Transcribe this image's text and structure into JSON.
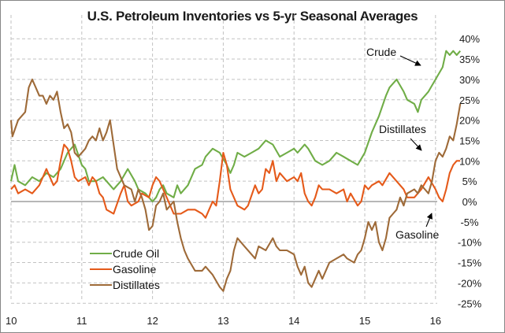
{
  "chart_data": {
    "type": "line",
    "title": "U.S. Petroleum Inventories vs 5-yr Seasonal Averages",
    "xlabel": "",
    "ylabel": "",
    "xlim": [
      10,
      16.2
    ],
    "ylim": [
      -25,
      40
    ],
    "x_ticks": [
      "10",
      "11",
      "12",
      "13",
      "14",
      "15",
      "16"
    ],
    "x_tick_values": [
      10,
      11,
      12,
      13,
      14,
      15,
      16
    ],
    "y_ticks": [
      "40%",
      "35%",
      "30%",
      "25%",
      "20%",
      "15%",
      "10%",
      "5%",
      "0%",
      "-5%",
      "-10%",
      "-15%",
      "-20%",
      "-25%"
    ],
    "y_tick_values": [
      40,
      35,
      30,
      25,
      20,
      15,
      10,
      5,
      0,
      -5,
      -10,
      -15,
      -20,
      -25
    ],
    "grid": true,
    "legend_position": "bottom-left",
    "series": [
      {
        "name": "Crude Oil",
        "color": "#70AD47",
        "points": [
          [
            10.0,
            5
          ],
          [
            10.05,
            9
          ],
          [
            10.1,
            5
          ],
          [
            10.2,
            4
          ],
          [
            10.3,
            6
          ],
          [
            10.4,
            5
          ],
          [
            10.5,
            7
          ],
          [
            10.6,
            6
          ],
          [
            10.7,
            8
          ],
          [
            10.8,
            12
          ],
          [
            10.9,
            14
          ],
          [
            11.0,
            9
          ],
          [
            11.05,
            8
          ],
          [
            11.1,
            5
          ],
          [
            11.2,
            5
          ],
          [
            11.3,
            6
          ],
          [
            11.4,
            4
          ],
          [
            11.45,
            3
          ],
          [
            11.55,
            5
          ],
          [
            11.65,
            8
          ],
          [
            11.75,
            5
          ],
          [
            11.8,
            3
          ],
          [
            11.9,
            2
          ],
          [
            12.0,
            0
          ],
          [
            12.05,
            1
          ],
          [
            12.1,
            3
          ],
          [
            12.15,
            4
          ],
          [
            12.2,
            2
          ],
          [
            12.3,
            1
          ],
          [
            12.35,
            4
          ],
          [
            12.4,
            2
          ],
          [
            12.5,
            4
          ],
          [
            12.6,
            8
          ],
          [
            12.7,
            9
          ],
          [
            12.75,
            11
          ],
          [
            12.85,
            13
          ],
          [
            12.95,
            12
          ],
          [
            13.05,
            9
          ],
          [
            13.1,
            7
          ],
          [
            13.15,
            9
          ],
          [
            13.2,
            12
          ],
          [
            13.3,
            11
          ],
          [
            13.4,
            12
          ],
          [
            13.5,
            13
          ],
          [
            13.6,
            15
          ],
          [
            13.7,
            14
          ],
          [
            13.8,
            11
          ],
          [
            13.9,
            12
          ],
          [
            14.0,
            13
          ],
          [
            14.05,
            12
          ],
          [
            14.15,
            14
          ],
          [
            14.2,
            13
          ],
          [
            14.3,
            10
          ],
          [
            14.4,
            9
          ],
          [
            14.5,
            10
          ],
          [
            14.6,
            12
          ],
          [
            14.7,
            11
          ],
          [
            14.8,
            10
          ],
          [
            14.9,
            9
          ],
          [
            15.0,
            12
          ],
          [
            15.1,
            17
          ],
          [
            15.2,
            21
          ],
          [
            15.3,
            26
          ],
          [
            15.35,
            28
          ],
          [
            15.45,
            30
          ],
          [
            15.55,
            27
          ],
          [
            15.6,
            25
          ],
          [
            15.7,
            24
          ],
          [
            15.75,
            22
          ],
          [
            15.8,
            25
          ],
          [
            15.9,
            27
          ],
          [
            16.0,
            30
          ],
          [
            16.1,
            33
          ],
          [
            16.15,
            37
          ],
          [
            16.2,
            36
          ],
          [
            16.25,
            37
          ],
          [
            16.3,
            36
          ],
          [
            16.35,
            37
          ]
        ]
      },
      {
        "name": "Gasoline",
        "color": "#E55A1A",
        "points": [
          [
            10.0,
            3
          ],
          [
            10.05,
            4
          ],
          [
            10.1,
            2
          ],
          [
            10.2,
            3
          ],
          [
            10.3,
            2
          ],
          [
            10.4,
            4
          ],
          [
            10.45,
            6
          ],
          [
            10.5,
            8
          ],
          [
            10.55,
            6
          ],
          [
            10.6,
            4
          ],
          [
            10.65,
            5
          ],
          [
            10.7,
            10
          ],
          [
            10.75,
            14
          ],
          [
            10.8,
            13
          ],
          [
            10.85,
            10
          ],
          [
            10.9,
            6
          ],
          [
            10.95,
            5
          ],
          [
            11.05,
            6
          ],
          [
            11.1,
            4
          ],
          [
            11.15,
            6
          ],
          [
            11.2,
            5
          ],
          [
            11.25,
            2
          ],
          [
            11.3,
            1
          ],
          [
            11.35,
            -2
          ],
          [
            11.45,
            -3
          ],
          [
            11.55,
            2
          ],
          [
            11.6,
            4
          ],
          [
            11.65,
            0
          ],
          [
            11.7,
            -1
          ],
          [
            11.8,
            0
          ],
          [
            11.85,
            2
          ],
          [
            11.95,
            1
          ],
          [
            12.0,
            4
          ],
          [
            12.05,
            6
          ],
          [
            12.1,
            5
          ],
          [
            12.15,
            3
          ],
          [
            12.2,
            1
          ],
          [
            12.3,
            -3
          ],
          [
            12.4,
            -3
          ],
          [
            12.5,
            -2
          ],
          [
            12.6,
            -2
          ],
          [
            12.7,
            -3
          ],
          [
            12.75,
            -4
          ],
          [
            12.8,
            -2
          ],
          [
            12.85,
            0
          ],
          [
            12.9,
            -1
          ],
          [
            12.95,
            5
          ],
          [
            13.0,
            12
          ],
          [
            13.05,
            9
          ],
          [
            13.1,
            3
          ],
          [
            13.2,
            -1
          ],
          [
            13.3,
            -2
          ],
          [
            13.35,
            -1
          ],
          [
            13.45,
            4
          ],
          [
            13.5,
            2
          ],
          [
            13.55,
            3
          ],
          [
            13.6,
            8
          ],
          [
            13.65,
            7
          ],
          [
            13.7,
            10
          ],
          [
            13.75,
            5
          ],
          [
            13.8,
            7
          ],
          [
            13.9,
            5
          ],
          [
            14.0,
            6
          ],
          [
            14.05,
            5
          ],
          [
            14.1,
            7
          ],
          [
            14.15,
            2
          ],
          [
            14.2,
            0
          ],
          [
            14.25,
            -1
          ],
          [
            14.3,
            1
          ],
          [
            14.35,
            4
          ],
          [
            14.4,
            3
          ],
          [
            14.5,
            3
          ],
          [
            14.6,
            2
          ],
          [
            14.7,
            3
          ],
          [
            14.75,
            0
          ],
          [
            14.8,
            2
          ],
          [
            14.9,
            -1
          ],
          [
            14.95,
            0
          ],
          [
            15.0,
            4
          ],
          [
            15.05,
            3
          ],
          [
            15.1,
            4
          ],
          [
            15.2,
            5
          ],
          [
            15.25,
            4
          ],
          [
            15.35,
            7
          ],
          [
            15.45,
            5
          ],
          [
            15.55,
            3
          ],
          [
            15.6,
            1
          ],
          [
            15.7,
            1
          ],
          [
            15.8,
            3
          ],
          [
            15.9,
            6
          ],
          [
            16.0,
            3
          ],
          [
            16.05,
            1
          ],
          [
            16.1,
            0
          ],
          [
            16.15,
            3
          ],
          [
            16.2,
            7
          ],
          [
            16.25,
            9
          ],
          [
            16.3,
            10
          ],
          [
            16.35,
            10
          ]
        ]
      },
      {
        "name": "Distillates",
        "color": "#9E6A38",
        "points": [
          [
            10.0,
            20
          ],
          [
            10.02,
            16
          ],
          [
            10.06,
            18
          ],
          [
            10.1,
            20
          ],
          [
            10.15,
            21
          ],
          [
            10.2,
            22
          ],
          [
            10.25,
            28
          ],
          [
            10.3,
            30
          ],
          [
            10.35,
            28
          ],
          [
            10.4,
            26
          ],
          [
            10.45,
            26
          ],
          [
            10.5,
            24
          ],
          [
            10.55,
            26
          ],
          [
            10.6,
            25
          ],
          [
            10.65,
            27
          ],
          [
            10.7,
            22
          ],
          [
            10.75,
            18
          ],
          [
            10.8,
            19
          ],
          [
            10.85,
            17
          ],
          [
            10.9,
            12
          ],
          [
            10.95,
            11
          ],
          [
            11.0,
            12
          ],
          [
            11.05,
            13
          ],
          [
            11.1,
            15
          ],
          [
            11.15,
            16
          ],
          [
            11.2,
            15
          ],
          [
            11.25,
            18
          ],
          [
            11.3,
            15
          ],
          [
            11.35,
            17
          ],
          [
            11.4,
            20
          ],
          [
            11.45,
            14
          ],
          [
            11.5,
            8
          ],
          [
            11.55,
            6
          ],
          [
            11.6,
            4
          ],
          [
            11.7,
            3
          ],
          [
            11.75,
            0
          ],
          [
            11.8,
            3
          ],
          [
            11.85,
            1
          ],
          [
            11.9,
            -2
          ],
          [
            11.95,
            -7
          ],
          [
            12.0,
            -6
          ],
          [
            12.05,
            -1
          ],
          [
            12.1,
            0
          ],
          [
            12.15,
            2
          ],
          [
            12.2,
            -2
          ],
          [
            12.25,
            -1
          ],
          [
            12.3,
            0
          ],
          [
            12.35,
            -5
          ],
          [
            12.4,
            -9
          ],
          [
            12.45,
            -12
          ],
          [
            12.5,
            -14
          ],
          [
            12.6,
            -17
          ],
          [
            12.7,
            -17
          ],
          [
            12.75,
            -16
          ],
          [
            12.85,
            -18
          ],
          [
            12.95,
            -21
          ],
          [
            13.0,
            -22
          ],
          [
            13.05,
            -19
          ],
          [
            13.1,
            -17
          ],
          [
            13.15,
            -12
          ],
          [
            13.2,
            -9
          ],
          [
            13.3,
            -11
          ],
          [
            13.4,
            -13
          ],
          [
            13.45,
            -14
          ],
          [
            13.5,
            -11
          ],
          [
            13.6,
            -12
          ],
          [
            13.7,
            -9
          ],
          [
            13.75,
            -11
          ],
          [
            13.8,
            -12
          ],
          [
            13.9,
            -12
          ],
          [
            14.0,
            -13
          ],
          [
            14.05,
            -16
          ],
          [
            14.1,
            -18
          ],
          [
            14.15,
            -16
          ],
          [
            14.2,
            -20
          ],
          [
            14.25,
            -21
          ],
          [
            14.35,
            -17
          ],
          [
            14.4,
            -19
          ],
          [
            14.5,
            -15
          ],
          [
            14.6,
            -14
          ],
          [
            14.7,
            -13
          ],
          [
            14.75,
            -14
          ],
          [
            14.85,
            -15
          ],
          [
            14.9,
            -13
          ],
          [
            14.95,
            -12
          ],
          [
            15.0,
            -9
          ],
          [
            15.05,
            -5
          ],
          [
            15.1,
            -7
          ],
          [
            15.15,
            -5
          ],
          [
            15.2,
            -10
          ],
          [
            15.25,
            -12
          ],
          [
            15.3,
            -9
          ],
          [
            15.35,
            -4
          ],
          [
            15.4,
            -3
          ],
          [
            15.45,
            -2
          ],
          [
            15.5,
            1
          ],
          [
            15.55,
            -1
          ],
          [
            15.6,
            2
          ],
          [
            15.7,
            3
          ],
          [
            15.75,
            2
          ],
          [
            15.8,
            4
          ],
          [
            15.85,
            3
          ],
          [
            15.9,
            2
          ],
          [
            15.95,
            5
          ],
          [
            16.0,
            10
          ],
          [
            16.05,
            12
          ],
          [
            16.1,
            11
          ],
          [
            16.15,
            13
          ],
          [
            16.2,
            16
          ],
          [
            16.25,
            15
          ],
          [
            16.3,
            19
          ],
          [
            16.35,
            24
          ]
        ]
      }
    ],
    "annotations": [
      {
        "text": "Crude",
        "target_series": "Crude Oil"
      },
      {
        "text": "Distillates",
        "target_series": "Distillates"
      },
      {
        "text": "Gasoline",
        "target_series": "Gasoline"
      }
    ],
    "legend": [
      "Crude Oil",
      "Gasoline",
      "Distillates"
    ]
  }
}
